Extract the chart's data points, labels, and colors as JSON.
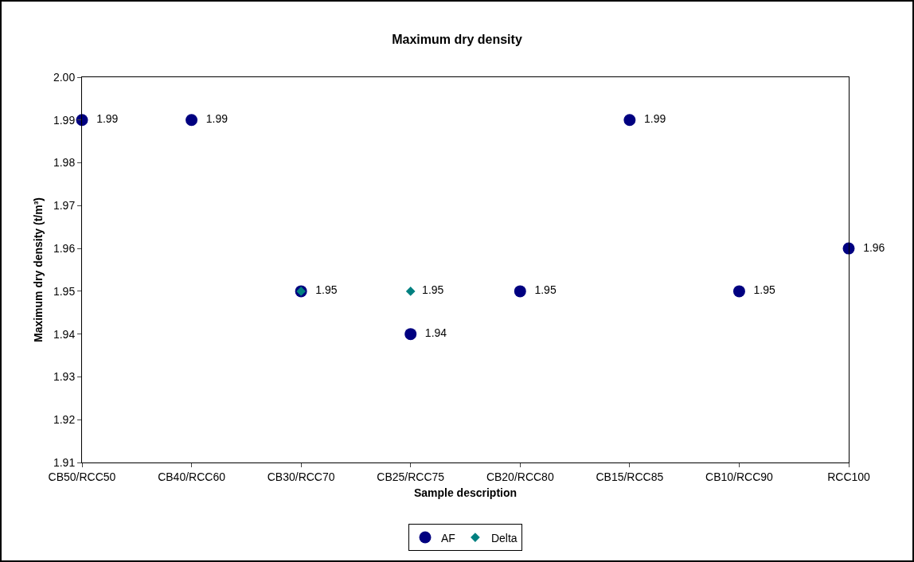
{
  "chart_data": {
    "type": "scatter",
    "title": "Maximum dry density",
    "xlabel": "Sample description",
    "ylabel": "Maximum dry density (t/m³)",
    "categories": [
      "CB50/RCC50",
      "CB40/RCC60",
      "CB30/RCC70",
      "CB25/RCC75",
      "CB20/RCC80",
      "CB15/RCC85",
      "CB10/RCC90",
      "RCC100"
    ],
    "series": [
      {
        "name": "AF",
        "color": "#000080",
        "marker": "circle",
        "values": [
          1.99,
          1.99,
          1.95,
          1.94,
          1.95,
          1.99,
          1.95,
          1.96
        ],
        "value_labels": [
          "1.99",
          "1.99",
          "1.95",
          "1.94",
          "1.95",
          "1.99",
          "1.95",
          "1.96"
        ]
      },
      {
        "name": "Delta",
        "color": "#008080",
        "marker": "diamond",
        "values": [
          null,
          null,
          1.95,
          1.95,
          null,
          null,
          null,
          null
        ],
        "value_labels": [
          null,
          null,
          null,
          "1.95",
          null,
          null,
          null,
          null
        ]
      }
    ],
    "ylim": [
      1.91,
      2.0
    ],
    "yticks": [
      {
        "value": 1.91,
        "label": "1.91"
      },
      {
        "value": 1.92,
        "label": "1.92"
      },
      {
        "value": 1.93,
        "label": "1.93"
      },
      {
        "value": 1.94,
        "label": "1.94"
      },
      {
        "value": 1.95,
        "label": "1.95"
      },
      {
        "value": 1.96,
        "label": "1.96"
      },
      {
        "value": 1.97,
        "label": "1.97"
      },
      {
        "value": 1.98,
        "label": "1.98"
      },
      {
        "value": 1.99,
        "label": "1.99"
      },
      {
        "value": 2.0,
        "label": "2.00"
      }
    ],
    "grid": false,
    "legend": "bottom"
  }
}
